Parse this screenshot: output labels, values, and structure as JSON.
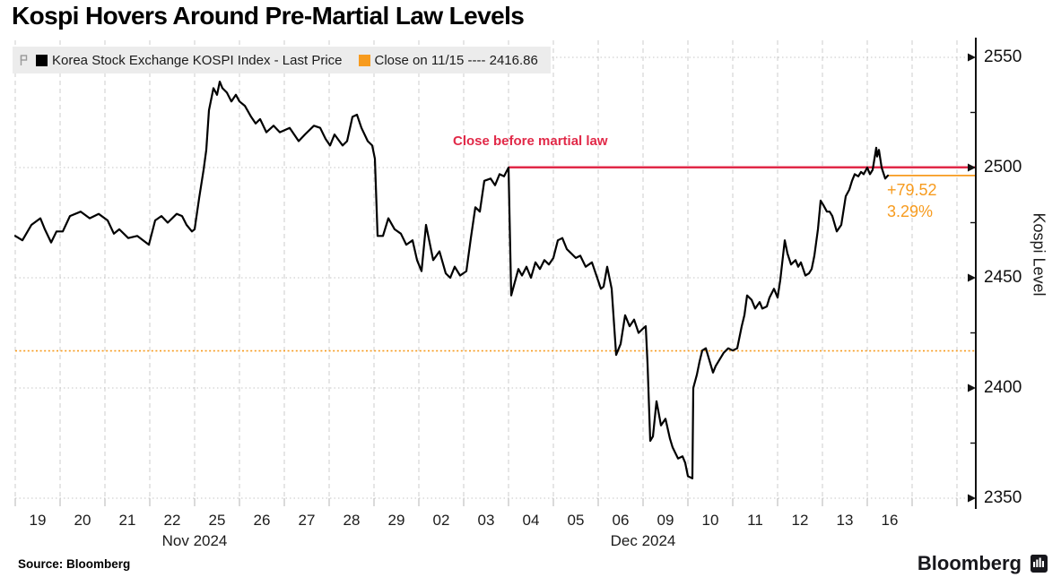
{
  "title": "Kospi Hovers Around Pre-Martial Law Levels",
  "source": "Source: Bloomberg",
  "brand": {
    "name": "Bloomberg",
    "icon": "bloomberg-terminal-icon"
  },
  "colors": {
    "series": "#000000",
    "red": "#e12948",
    "orange": "#f79b1e",
    "grid": "#cccccc",
    "legend_bg": "#ececec",
    "axis": "#111111"
  },
  "legend": [
    {
      "swatch": "#000000",
      "label": "Korea Stock Exchange KOSPI Index - Last Price"
    },
    {
      "swatch": "#f79b1e",
      "label": "Close on 11/15 ---- 2416.86"
    }
  ],
  "annotations": {
    "red_line_label": "Close before martial law",
    "change_abs": "+79.52",
    "change_pct": "3.29%"
  },
  "chart_data": {
    "type": "line",
    "title": "Kospi Hovers Around Pre-Martial Law Levels",
    "xlabel": "",
    "ylabel": "Kospi Level",
    "grid": true,
    "legend_position": "top-left",
    "ylim": [
      2340,
      2560
    ],
    "y_ticks": [
      2550,
      2500,
      2450,
      2400,
      2350
    ],
    "x_tick_labels": [
      "19",
      "20",
      "21",
      "22",
      "25",
      "26",
      "27",
      "28",
      "29",
      "02",
      "03",
      "04",
      "05",
      "06",
      "09",
      "10",
      "11",
      "12",
      "13",
      "16"
    ],
    "month_labels": [
      {
        "label": "Nov 2024",
        "boundary_index": 4
      },
      {
        "label": "Dec 2024",
        "boundary_index": 14
      }
    ],
    "reference_lines": [
      {
        "name": "close-before-martial-law",
        "value": 2500.1,
        "color": "#e12948",
        "style": "solid",
        "width": 2.6,
        "from_day": 11.0
      },
      {
        "name": "close-on-11-15",
        "value": 2416.86,
        "color": "#f79b1e",
        "style": "dotted",
        "width": 1.6,
        "from_day": null
      },
      {
        "name": "last-price-level",
        "value": 2496.38,
        "color": "#f79b1e",
        "style": "solid",
        "width": 1.7,
        "from_day": 19.46
      }
    ],
    "series": [
      {
        "name": "Korea Stock Exchange KOSPI Index - Last Price",
        "color": "#000000",
        "last_value": 2496.38,
        "points": [
          [
            0.0,
            2469
          ],
          [
            0.16,
            2467
          ],
          [
            0.36,
            2474
          ],
          [
            0.56,
            2477
          ],
          [
            0.66,
            2472
          ],
          [
            0.8,
            2466
          ],
          [
            0.92,
            2471
          ],
          [
            1.06,
            2471
          ],
          [
            1.22,
            2478
          ],
          [
            1.46,
            2480
          ],
          [
            1.66,
            2477
          ],
          [
            1.86,
            2479
          ],
          [
            2.06,
            2476
          ],
          [
            2.2,
            2470
          ],
          [
            2.32,
            2472
          ],
          [
            2.52,
            2468
          ],
          [
            2.72,
            2469
          ],
          [
            2.98,
            2465
          ],
          [
            3.12,
            2476
          ],
          [
            3.26,
            2478
          ],
          [
            3.4,
            2475
          ],
          [
            3.6,
            2479
          ],
          [
            3.72,
            2478
          ],
          [
            3.82,
            2474
          ],
          [
            3.94,
            2471
          ],
          [
            4.0,
            2472
          ],
          [
            4.1,
            2486
          ],
          [
            4.2,
            2499
          ],
          [
            4.26,
            2508
          ],
          [
            4.32,
            2526
          ],
          [
            4.42,
            2536
          ],
          [
            4.5,
            2533
          ],
          [
            4.56,
            2539
          ],
          [
            4.62,
            2536
          ],
          [
            4.72,
            2534
          ],
          [
            4.82,
            2530
          ],
          [
            4.92,
            2533
          ],
          [
            5.0,
            2530
          ],
          [
            5.12,
            2528
          ],
          [
            5.26,
            2523
          ],
          [
            5.36,
            2520
          ],
          [
            5.46,
            2522
          ],
          [
            5.6,
            2516
          ],
          [
            5.76,
            2519
          ],
          [
            5.9,
            2516
          ],
          [
            6.12,
            2518
          ],
          [
            6.32,
            2512
          ],
          [
            6.46,
            2515
          ],
          [
            6.66,
            2519
          ],
          [
            6.8,
            2518
          ],
          [
            6.92,
            2513
          ],
          [
            7.02,
            2510
          ],
          [
            7.12,
            2515
          ],
          [
            7.3,
            2510
          ],
          [
            7.4,
            2512
          ],
          [
            7.52,
            2523
          ],
          [
            7.62,
            2524
          ],
          [
            7.72,
            2518
          ],
          [
            7.86,
            2512
          ],
          [
            7.96,
            2510
          ],
          [
            8.02,
            2504
          ],
          [
            8.08,
            2469
          ],
          [
            8.2,
            2469
          ],
          [
            8.32,
            2477
          ],
          [
            8.46,
            2472
          ],
          [
            8.6,
            2470
          ],
          [
            8.72,
            2465
          ],
          [
            8.86,
            2467
          ],
          [
            8.96,
            2458
          ],
          [
            9.06,
            2453
          ],
          [
            9.16,
            2474
          ],
          [
            9.32,
            2458
          ],
          [
            9.46,
            2462
          ],
          [
            9.6,
            2452
          ],
          [
            9.7,
            2450
          ],
          [
            9.8,
            2455
          ],
          [
            9.92,
            2451
          ],
          [
            10.06,
            2453
          ],
          [
            10.16,
            2468
          ],
          [
            10.26,
            2482
          ],
          [
            10.36,
            2480
          ],
          [
            10.46,
            2494
          ],
          [
            10.6,
            2495
          ],
          [
            10.7,
            2492
          ],
          [
            10.8,
            2497
          ],
          [
            10.9,
            2496
          ],
          [
            11.0,
            2500
          ],
          [
            11.06,
            2442
          ],
          [
            11.22,
            2454
          ],
          [
            11.3,
            2451
          ],
          [
            11.4,
            2455
          ],
          [
            11.5,
            2450
          ],
          [
            11.6,
            2457
          ],
          [
            11.7,
            2454
          ],
          [
            11.8,
            2458
          ],
          [
            11.9,
            2456
          ],
          [
            12.0,
            2459
          ],
          [
            12.1,
            2467
          ],
          [
            12.2,
            2468
          ],
          [
            12.3,
            2463
          ],
          [
            12.4,
            2461
          ],
          [
            12.5,
            2459
          ],
          [
            12.6,
            2460
          ],
          [
            12.72,
            2455
          ],
          [
            12.86,
            2457
          ],
          [
            12.96,
            2451
          ],
          [
            13.06,
            2445
          ],
          [
            13.12,
            2446
          ],
          [
            13.2,
            2455
          ],
          [
            13.3,
            2445
          ],
          [
            13.4,
            2415
          ],
          [
            13.5,
            2420
          ],
          [
            13.6,
            2433
          ],
          [
            13.7,
            2428
          ],
          [
            13.8,
            2431
          ],
          [
            13.9,
            2425
          ],
          [
            14.0,
            2427
          ],
          [
            14.06,
            2428
          ],
          [
            14.1,
            2411
          ],
          [
            14.16,
            2376
          ],
          [
            14.22,
            2378
          ],
          [
            14.3,
            2394
          ],
          [
            14.4,
            2383
          ],
          [
            14.5,
            2386
          ],
          [
            14.6,
            2377
          ],
          [
            14.66,
            2373
          ],
          [
            14.78,
            2368
          ],
          [
            14.88,
            2369
          ],
          [
            14.94,
            2366
          ],
          [
            15.0,
            2360
          ],
          [
            15.1,
            2359
          ],
          [
            15.12,
            2400
          ],
          [
            15.2,
            2406
          ],
          [
            15.26,
            2412
          ],
          [
            15.32,
            2417
          ],
          [
            15.4,
            2418
          ],
          [
            15.56,
            2407
          ],
          [
            15.62,
            2410
          ],
          [
            15.8,
            2416
          ],
          [
            15.9,
            2418
          ],
          [
            16.0,
            2417
          ],
          [
            16.1,
            2418
          ],
          [
            16.2,
            2428
          ],
          [
            16.26,
            2433
          ],
          [
            16.32,
            2442
          ],
          [
            16.42,
            2440
          ],
          [
            16.5,
            2436
          ],
          [
            16.6,
            2439
          ],
          [
            16.66,
            2436
          ],
          [
            16.76,
            2437
          ],
          [
            16.82,
            2441
          ],
          [
            16.92,
            2445
          ],
          [
            17.0,
            2441
          ],
          [
            17.06,
            2449
          ],
          [
            17.16,
            2467
          ],
          [
            17.22,
            2461
          ],
          [
            17.3,
            2456
          ],
          [
            17.4,
            2458
          ],
          [
            17.46,
            2455
          ],
          [
            17.52,
            2457
          ],
          [
            17.62,
            2451
          ],
          [
            17.7,
            2452
          ],
          [
            17.76,
            2454
          ],
          [
            17.82,
            2460
          ],
          [
            17.9,
            2472
          ],
          [
            17.96,
            2485
          ],
          [
            18.02,
            2483
          ],
          [
            18.1,
            2480
          ],
          [
            18.16,
            2480
          ],
          [
            18.22,
            2478
          ],
          [
            18.32,
            2471
          ],
          [
            18.42,
            2474
          ],
          [
            18.52,
            2487
          ],
          [
            18.6,
            2490
          ],
          [
            18.66,
            2494
          ],
          [
            18.72,
            2497
          ],
          [
            18.8,
            2496
          ],
          [
            18.86,
            2498
          ],
          [
            18.92,
            2497
          ],
          [
            19.0,
            2500
          ],
          [
            19.06,
            2497
          ],
          [
            19.12,
            2499
          ],
          [
            19.2,
            2509
          ],
          [
            19.22,
            2505
          ],
          [
            19.26,
            2508
          ],
          [
            19.32,
            2500
          ],
          [
            19.4,
            2495
          ],
          [
            19.46,
            2496.38
          ]
        ]
      }
    ]
  }
}
